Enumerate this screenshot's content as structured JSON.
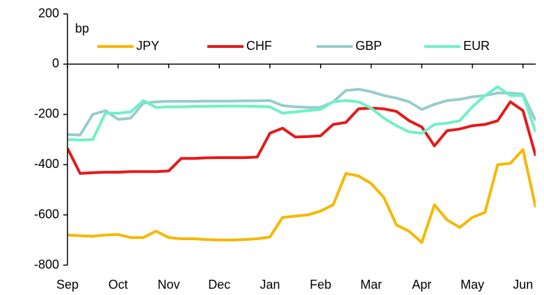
{
  "chart_data": {
    "type": "line",
    "y_label": "bp",
    "x": [
      0,
      0.25,
      0.5,
      0.75,
      1,
      1.25,
      1.5,
      1.75,
      2,
      2.25,
      2.5,
      2.75,
      3,
      3.25,
      3.5,
      3.75,
      4,
      4.25,
      4.5,
      4.75,
      5,
      5.25,
      5.5,
      5.75,
      6,
      6.25,
      6.5,
      6.75,
      7,
      7.25,
      7.5,
      7.75,
      8,
      8.25,
      8.5,
      8.75,
      9,
      9.25
    ],
    "series": [
      {
        "name": "JPY",
        "color": "#f5b800",
        "values": [
          -680,
          -683,
          -685,
          -680,
          -678,
          -690,
          -690,
          -665,
          -690,
          -695,
          -695,
          -698,
          -700,
          -700,
          -698,
          -695,
          -688,
          -610,
          -605,
          -600,
          -585,
          -560,
          -435,
          -445,
          -475,
          -530,
          -640,
          -665,
          -710,
          -560,
          -620,
          -650,
          -610,
          -590,
          -400,
          -395,
          -340,
          -570
        ]
      },
      {
        "name": "CHF",
        "color": "#e61919",
        "values": [
          -335,
          -435,
          -432,
          -430,
          -430,
          -428,
          -428,
          -428,
          -425,
          -375,
          -375,
          -373,
          -372,
          -372,
          -372,
          -370,
          -275,
          -255,
          -290,
          -288,
          -285,
          -240,
          -232,
          -178,
          -175,
          -178,
          -188,
          -225,
          -250,
          -325,
          -265,
          -258,
          -245,
          -240,
          -225,
          -150,
          -185,
          -365
        ]
      },
      {
        "name": "GBP",
        "color": "#99cccc",
        "values": [
          -280,
          -282,
          -200,
          -185,
          -220,
          -215,
          -155,
          -150,
          -148,
          -148,
          -148,
          -147,
          -147,
          -147,
          -146,
          -146,
          -145,
          -165,
          -170,
          -172,
          -172,
          -150,
          -105,
          -100,
          -110,
          -125,
          -135,
          -150,
          -180,
          -160,
          -145,
          -140,
          -130,
          -125,
          -115,
          -115,
          -120,
          -225
        ]
      },
      {
        "name": "EUR",
        "color": "#70f0c8",
        "values": [
          -300,
          -302,
          -300,
          -195,
          -195,
          -190,
          -145,
          -172,
          -170,
          -170,
          -168,
          -168,
          -167,
          -167,
          -167,
          -168,
          -170,
          -195,
          -190,
          -185,
          -180,
          -150,
          -145,
          -150,
          -175,
          -215,
          -245,
          -270,
          -275,
          -240,
          -235,
          -225,
          -170,
          -125,
          -90,
          -125,
          -125,
          -270
        ]
      }
    ],
    "xlim": [
      0,
      9.25
    ],
    "xticks": [
      {
        "value": 0,
        "label": "Sep"
      },
      {
        "value": 1,
        "label": "Oct"
      },
      {
        "value": 2,
        "label": "Nov"
      },
      {
        "value": 3,
        "label": "Dec"
      },
      {
        "value": 4,
        "label": "Jan"
      },
      {
        "value": 5,
        "label": "Feb"
      },
      {
        "value": 6,
        "label": "Mar"
      },
      {
        "value": 7,
        "label": "Apr"
      },
      {
        "value": 8,
        "label": "May"
      },
      {
        "value": 9,
        "label": "Jun"
      }
    ],
    "ylim": [
      -800,
      200
    ],
    "yticks": [
      200,
      0,
      -200,
      -400,
      -600,
      -800
    ],
    "legend": "top"
  }
}
